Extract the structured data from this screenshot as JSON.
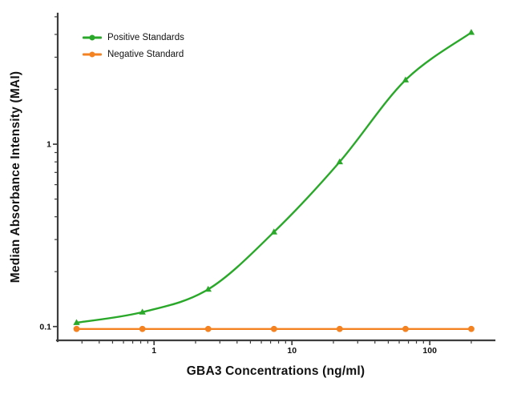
{
  "chart_data": {
    "type": "line",
    "title": "",
    "xlabel": "GBA3 Concentrations (ng/ml)",
    "ylabel": "Median Absorbance Intensity (MAI)",
    "x_scale": "log",
    "y_scale": "log",
    "xlim": [
      0.2,
      295
    ],
    "ylim": [
      0.084,
      5.15
    ],
    "grid": false,
    "legend_position": "top-left",
    "axis_color": "#3d3d3d",
    "x": [
      0.274,
      0.823,
      2.47,
      7.41,
      22.2,
      66.7,
      200
    ],
    "series": [
      {
        "name": "Positive Standards",
        "color": "#29a829",
        "marker": "triangle",
        "smooth": true,
        "values": [
          0.105,
          0.12,
          0.16,
          0.33,
          0.8,
          2.25,
          4.1
        ]
      },
      {
        "name": "Negative Standard",
        "color": "#f58220",
        "marker": "circle",
        "smooth": false,
        "values": [
          0.097,
          0.097,
          0.097,
          0.097,
          0.097,
          0.097,
          0.097
        ]
      }
    ],
    "x_ticks": [
      {
        "v": 1,
        "label": "1"
      },
      {
        "v": 10,
        "label": "10"
      },
      {
        "v": 100,
        "label": "100"
      }
    ],
    "y_ticks": [
      {
        "v": 0.1,
        "label": "0.1"
      },
      {
        "v": 1,
        "label": "1"
      }
    ],
    "x_minor_ticks": [
      0.3,
      0.4,
      0.5,
      0.6,
      0.7,
      0.8,
      0.9,
      2,
      3,
      4,
      5,
      6,
      7,
      8,
      9,
      20,
      30,
      40,
      50,
      60,
      70,
      80,
      90,
      200
    ],
    "y_minor_ticks": [
      0.2,
      0.3,
      0.4,
      0.5,
      0.6,
      0.7,
      0.8,
      0.9,
      2,
      3,
      4,
      5
    ]
  }
}
